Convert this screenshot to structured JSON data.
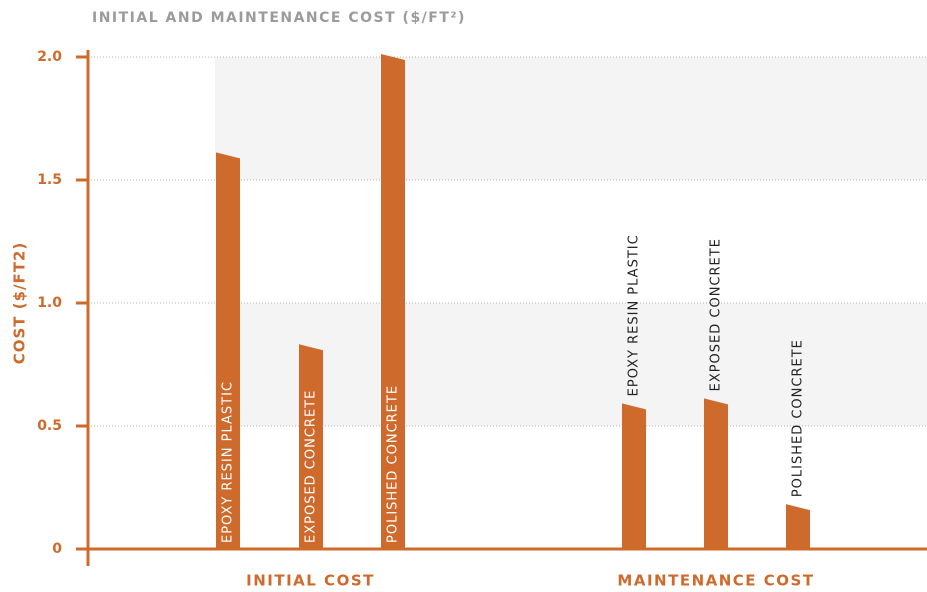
{
  "chart_data": {
    "type": "bar",
    "title": "INITIAL AND MAINTENANCE COST ($/FT²)",
    "y_label": "COST ($/FT2)",
    "categories": [
      "INITIAL COST",
      "MAINTENANCE COST"
    ],
    "series": [
      {
        "name": "EPOXY RESIN PLASTIC",
        "color": "#cf6a2d",
        "values": [
          1.6,
          0.58
        ]
      },
      {
        "name": "EXPOSED CONCRETE",
        "color": "#cf6a2d",
        "values": [
          0.82,
          0.6
        ]
      },
      {
        "name": "POLISHED CONCRETE",
        "color": "#cf6a2d",
        "values": [
          2.0,
          0.17
        ]
      }
    ],
    "ylim": [
      0,
      2.0
    ],
    "yticks": [
      0,
      0.5,
      {
        "value": 1.0,
        "label": "1.0"
      },
      1.5,
      {
        "value": 2.0,
        "label": "2.0"
      }
    ],
    "grid": true
  }
}
